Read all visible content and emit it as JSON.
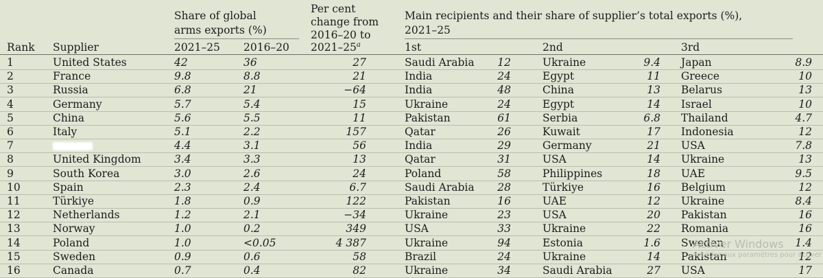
{
  "headers": {
    "rank": "Rank",
    "supplier": "Supplier",
    "share_group": "Share of global arms exports (%)",
    "share_group_line1": "Share of global",
    "share_group_line2": "arms exports (%)",
    "share_2021": "2021–25",
    "share_2016": "2016–20",
    "change_line1": "Per cent",
    "change_line2": "change from",
    "change_line3": "2016–20 to",
    "change_line4": "2021–25",
    "change_note": "a",
    "recipients_line1": "Main recipients and their share of supplier’s total exports (%),",
    "recipients_line2": "2021–25",
    "first": "1st",
    "second": "2nd",
    "third": "3rd"
  },
  "rows": [
    {
      "rank": "1",
      "supplier": "United States",
      "s21": "42",
      "s16": "36",
      "change": "27",
      "r1": "Saudi Arabia",
      "v1": "12",
      "r2": "Ukraine",
      "v2": "9.4",
      "r3": "Japan",
      "v3": "8.9"
    },
    {
      "rank": "2",
      "supplier": "France",
      "s21": "9.8",
      "s16": "8.8",
      "change": "21",
      "r1": "India",
      "v1": "24",
      "r2": "Egypt",
      "v2": "11",
      "r3": "Greece",
      "v3": "10"
    },
    {
      "rank": "3",
      "supplier": "Russia",
      "s21": "6.8",
      "s16": "21",
      "change": "−64",
      "r1": "India",
      "v1": "48",
      "r2": "China",
      "v2": "13",
      "r3": "Belarus",
      "v3": "13"
    },
    {
      "rank": "4",
      "supplier": "Germany",
      "s21": "5.7",
      "s16": "5.4",
      "change": "15",
      "r1": "Ukraine",
      "v1": "24",
      "r2": "Egypt",
      "v2": "14",
      "r3": "Israel",
      "v3": "10"
    },
    {
      "rank": "5",
      "supplier": "China",
      "s21": "5.6",
      "s16": "5.5",
      "change": "11",
      "r1": "Pakistan",
      "v1": "61",
      "r2": "Serbia",
      "v2": "6.8",
      "r3": "Thailand",
      "v3": "4.7"
    },
    {
      "rank": "6",
      "supplier": "Italy",
      "s21": "5.1",
      "s16": "2.2",
      "change": "157",
      "r1": "Qatar",
      "v1": "26",
      "r2": "Kuwait",
      "v2": "17",
      "r3": "Indonesia",
      "v3": "12"
    },
    {
      "rank": "7",
      "supplier": "",
      "s21": "4.4",
      "s16": "3.1",
      "change": "56",
      "r1": "India",
      "v1": "29",
      "r2": "Germany",
      "v2": "21",
      "r3": "USA",
      "v3": "7.8"
    },
    {
      "rank": "8",
      "supplier": "United Kingdom",
      "s21": "3.4",
      "s16": "3.3",
      "change": "13",
      "r1": "Qatar",
      "v1": "31",
      "r2": "USA",
      "v2": "14",
      "r3": "Ukraine",
      "v3": "13"
    },
    {
      "rank": "9",
      "supplier": "South Korea",
      "s21": "3.0",
      "s16": "2.6",
      "change": "24",
      "r1": "Poland",
      "v1": "58",
      "r2": "Philippines",
      "v2": "18",
      "r3": "UAE",
      "v3": "9.5"
    },
    {
      "rank": "10",
      "supplier": "Spain",
      "s21": "2.3",
      "s16": "2.4",
      "change": "6.7",
      "r1": "Saudi Arabia",
      "v1": "28",
      "r2": "Türkiye",
      "v2": "16",
      "r3": "Belgium",
      "v3": "12"
    },
    {
      "rank": "11",
      "supplier": "Türkiye",
      "s21": "1.8",
      "s16": "0.9",
      "change": "122",
      "r1": "Pakistan",
      "v1": "16",
      "r2": "UAE",
      "v2": "12",
      "r3": "Ukraine",
      "v3": "8.4"
    },
    {
      "rank": "12",
      "supplier": "Netherlands",
      "s21": "1.2",
      "s16": "2.1",
      "change": "−34",
      "r1": "Ukraine",
      "v1": "23",
      "r2": "USA",
      "v2": "20",
      "r3": "Pakistan",
      "v3": "16"
    },
    {
      "rank": "13",
      "supplier": "Norway",
      "s21": "1.0",
      "s16": "0.2",
      "change": "349",
      "r1": "USA",
      "v1": "33",
      "r2": "Ukraine",
      "v2": "22",
      "r3": "Romania",
      "v3": "16"
    },
    {
      "rank": "14",
      "supplier": "Poland",
      "s21": "1.0",
      "s16": "<0.05",
      "change": "4 387",
      "r1": "Ukraine",
      "v1": "94",
      "r2": "Estonia",
      "v2": "1.6",
      "r3": "Sweden",
      "v3": "1.4"
    },
    {
      "rank": "15",
      "supplier": "Sweden",
      "s21": "0.9",
      "s16": "0.6",
      "change": "58",
      "r1": "Brazil",
      "v1": "24",
      "r2": "Ukraine",
      "v2": "14",
      "r3": "Pakistan",
      "v3": "12"
    },
    {
      "rank": "16",
      "supplier": "Canada",
      "s21": "0.7",
      "s16": "0.4",
      "change": "82",
      "r1": "Ukraine",
      "v1": "34",
      "r2": "Saudi Arabia",
      "v2": "27",
      "r3": "USA",
      "v3": "17"
    }
  ],
  "watermark": {
    "line1": "Activer Windows",
    "line2": "Accédez aux paramètres pour activer Windows."
  }
}
